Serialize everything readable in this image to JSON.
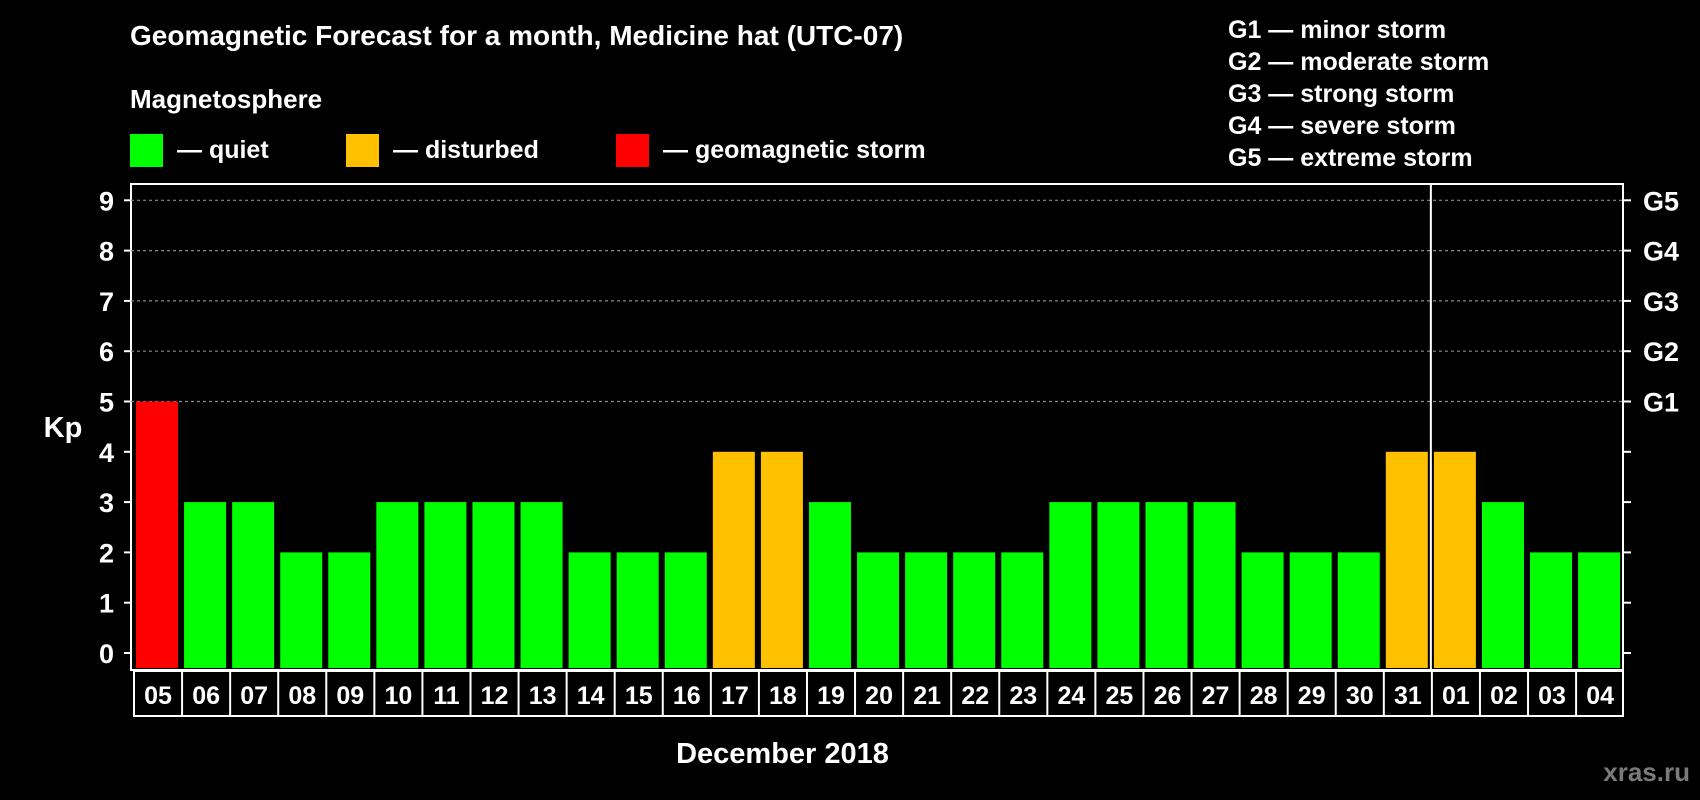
{
  "title": "Geomagnetic Forecast for a month, Medicine hat (UTC-07)",
  "subtitle": "Magnetosphere",
  "legend": [
    {
      "label": "— quiet",
      "color": "#00ff00"
    },
    {
      "label": "— disturbed",
      "color": "#ffc000"
    },
    {
      "label": "— geomagnetic storm",
      "color": "#ff0000"
    }
  ],
  "g_levels": [
    "G1 — minor storm",
    "G2 — moderate storm",
    "G3 — strong storm",
    "G4 — severe storm",
    "G5 — extreme storm"
  ],
  "watermark": "xras.ru",
  "chart_data": {
    "type": "bar",
    "title": "Geomagnetic Forecast for a month, Medicine hat (UTC-07)",
    "xlabel": "December 2018",
    "ylabel": "Kp",
    "ylim": [
      0,
      9
    ],
    "yticks": [
      0,
      1,
      2,
      3,
      4,
      5,
      6,
      7,
      8,
      9
    ],
    "right_ticks": [
      {
        "value": 5,
        "label": "G1"
      },
      {
        "value": 6,
        "label": "G2"
      },
      {
        "value": 7,
        "label": "G3"
      },
      {
        "value": 8,
        "label": "G4"
      },
      {
        "value": 9,
        "label": "G5"
      }
    ],
    "grid": "dashed horizontal at 5–9",
    "month_divider_after": "31",
    "categories": [
      "05",
      "06",
      "07",
      "08",
      "09",
      "10",
      "11",
      "12",
      "13",
      "14",
      "15",
      "16",
      "17",
      "18",
      "19",
      "20",
      "21",
      "22",
      "23",
      "24",
      "25",
      "26",
      "27",
      "28",
      "29",
      "30",
      "31",
      "01",
      "02",
      "03",
      "04"
    ],
    "values": [
      5,
      3,
      3,
      2,
      2,
      3,
      3,
      3,
      3,
      2,
      2,
      2,
      4,
      4,
      3,
      2,
      2,
      2,
      2,
      3,
      3,
      3,
      3,
      2,
      2,
      2,
      4,
      4,
      3,
      2,
      2
    ],
    "colors": {
      "quiet": "#00ff00",
      "disturbed": "#ffc000",
      "storm": "#ff0000"
    }
  }
}
